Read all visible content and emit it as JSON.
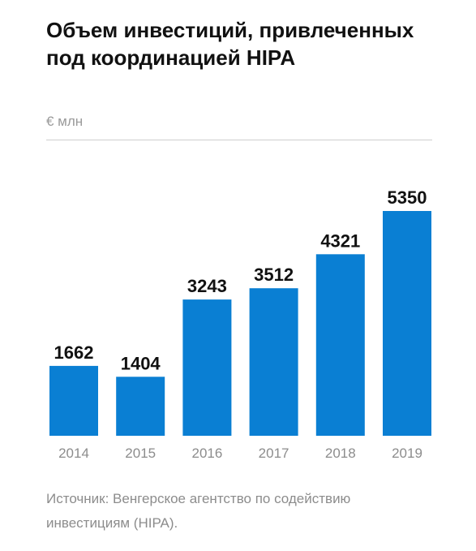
{
  "title": "Объем инвестиций, привлеченных под координацией HIPA",
  "unit_label": "€ млн",
  "source": "Источник: Венгерское агентство по содействию инвестициям (HIPA).",
  "colors": {
    "bar": "#0a7fd3",
    "label": "#111111",
    "tick": "#8c8c8c",
    "rule": "#cfcfcf"
  },
  "chart_data": {
    "type": "bar",
    "title": "Объем инвестиций, привлеченных под координацией HIPA",
    "ylabel": "€ млн",
    "categories": [
      "2014",
      "2015",
      "2016",
      "2017",
      "2018",
      "2019"
    ],
    "values": [
      1662,
      1404,
      3243,
      3512,
      4321,
      5350
    ],
    "ylim": [
      0,
      5350
    ],
    "grid": false,
    "legend": "none"
  }
}
